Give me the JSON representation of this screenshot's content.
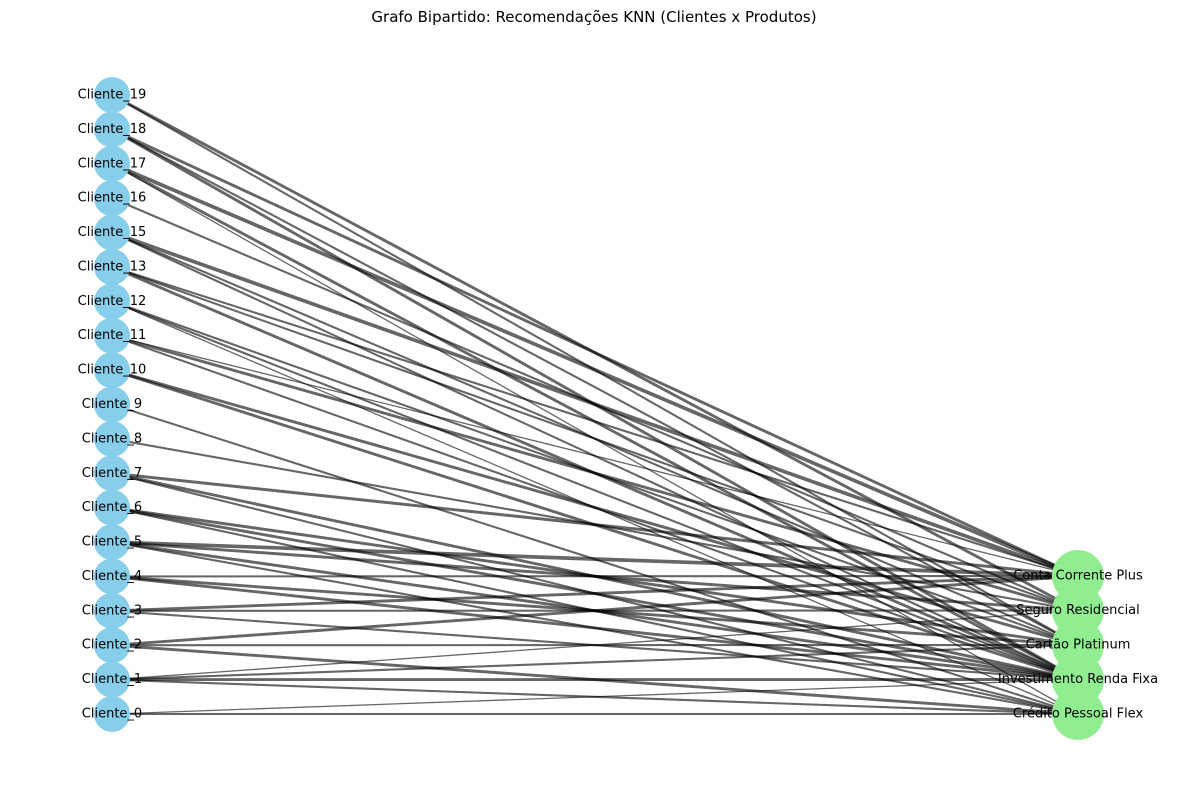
{
  "title": "Grafo Bipartido: Recomendações KNN (Clientes x Produtos)",
  "colors": {
    "client_node": "#87ceeb",
    "product_node": "#90ee90",
    "edge": "#000000"
  },
  "clients": [
    "Cliente_19",
    "Cliente_18",
    "Cliente_17",
    "Cliente_16",
    "Cliente_15",
    "Cliente_13",
    "Cliente_12",
    "Cliente_11",
    "Cliente_10",
    "Cliente_9",
    "Cliente_8",
    "Cliente_7",
    "Cliente_6",
    "Cliente_5",
    "Cliente_4",
    "Cliente_3",
    "Cliente_2",
    "Cliente_1",
    "Cliente_0"
  ],
  "products": [
    "Conta Corrente Plus",
    "Seguro Residencial",
    "Cartão Platinum",
    "Investimento Renda Fixa",
    "Crédito Pessoal Flex"
  ],
  "edges": [
    {
      "client": "Cliente_19",
      "product": "Seguro Residencial",
      "weight": 3
    },
    {
      "client": "Cliente_19",
      "product": "Cartão Platinum",
      "weight": 2
    },
    {
      "client": "Cliente_18",
      "product": "Investimento Renda Fixa",
      "weight": 3
    },
    {
      "client": "Cliente_18",
      "product": "Cartão Platinum",
      "weight": 2
    },
    {
      "client": "Cliente_18",
      "product": "Conta Corrente Plus",
      "weight": 3
    },
    {
      "client": "Cliente_17",
      "product": "Conta Corrente Plus",
      "weight": 4
    },
    {
      "client": "Cliente_17",
      "product": "Crédito Pessoal Flex",
      "weight": 1
    },
    {
      "client": "Cliente_17",
      "product": "Investimento Renda Fixa",
      "weight": 3
    },
    {
      "client": "Cliente_16",
      "product": "Seguro Residencial",
      "weight": 2
    },
    {
      "client": "Cliente_15",
      "product": "Conta Corrente Plus",
      "weight": 4
    },
    {
      "client": "Cliente_15",
      "product": "Cartão Platinum",
      "weight": 2
    },
    {
      "client": "Cliente_15",
      "product": "Investimento Renda Fixa",
      "weight": 2
    },
    {
      "client": "Cliente_13",
      "product": "Investimento Renda Fixa",
      "weight": 3
    },
    {
      "client": "Cliente_13",
      "product": "Conta Corrente Plus",
      "weight": 2
    },
    {
      "client": "Cliente_13",
      "product": "Seguro Residencial",
      "weight": 2
    },
    {
      "client": "Cliente_12",
      "product": "Cartão Platinum",
      "weight": 2
    },
    {
      "client": "Cliente_12",
      "product": "Investimento Renda Fixa",
      "weight": 2
    },
    {
      "client": "Cliente_12",
      "product": "Crédito Pessoal Flex",
      "weight": 1
    },
    {
      "client": "Cliente_11",
      "product": "Seguro Residencial",
      "weight": 3
    },
    {
      "client": "Cliente_11",
      "product": "Investimento Renda Fixa",
      "weight": 2
    },
    {
      "client": "Cliente_11",
      "product": "Conta Corrente Plus",
      "weight": 1
    },
    {
      "client": "Cliente_10",
      "product": "Cartão Platinum",
      "weight": 3
    },
    {
      "client": "Cliente_10",
      "product": "Investimento Renda Fixa",
      "weight": 3
    },
    {
      "client": "Cliente_9",
      "product": "Crédito Pessoal Flex",
      "weight": 2
    },
    {
      "client": "Cliente_8",
      "product": "Seguro Residencial",
      "weight": 2
    },
    {
      "client": "Cliente_7",
      "product": "Conta Corrente Plus",
      "weight": 3
    },
    {
      "client": "Cliente_7",
      "product": "Investimento Renda Fixa",
      "weight": 3
    },
    {
      "client": "Cliente_7",
      "product": "Crédito Pessoal Flex",
      "weight": 2
    },
    {
      "client": "Cliente_6",
      "product": "Cartão Platinum",
      "weight": 3
    },
    {
      "client": "Cliente_6",
      "product": "Investimento Renda Fixa",
      "weight": 3
    },
    {
      "client": "Cliente_6",
      "product": "Crédito Pessoal Flex",
      "weight": 2
    },
    {
      "client": "Cliente_5",
      "product": "Conta Corrente Plus",
      "weight": 4
    },
    {
      "client": "Cliente_5",
      "product": "Seguro Residencial",
      "weight": 3
    },
    {
      "client": "Cliente_5",
      "product": "Investimento Renda Fixa",
      "weight": 3
    },
    {
      "client": "Cliente_5",
      "product": "Crédito Pessoal Flex",
      "weight": 2
    },
    {
      "client": "Cliente_4",
      "product": "Conta Corrente Plus",
      "weight": 2
    },
    {
      "client": "Cliente_4",
      "product": "Cartão Platinum",
      "weight": 3
    },
    {
      "client": "Cliente_4",
      "product": "Investimento Renda Fixa",
      "weight": 3
    },
    {
      "client": "Cliente_3",
      "product": "Conta Corrente Plus",
      "weight": 3
    },
    {
      "client": "Cliente_3",
      "product": "Seguro Residencial",
      "weight": 2
    },
    {
      "client": "Cliente_3",
      "product": "Investimento Renda Fixa",
      "weight": 2
    },
    {
      "client": "Cliente_2",
      "product": "Conta Corrente Plus",
      "weight": 3
    },
    {
      "client": "Cliente_2",
      "product": "Cartão Platinum",
      "weight": 2
    },
    {
      "client": "Cliente_2",
      "product": "Crédito Pessoal Flex",
      "weight": 3
    },
    {
      "client": "Cliente_1",
      "product": "Investimento Renda Fixa",
      "weight": 3
    },
    {
      "client": "Cliente_1",
      "product": "Seguro Residencial",
      "weight": 1
    },
    {
      "client": "Cliente_1",
      "product": "Cartão Platinum",
      "weight": 2
    },
    {
      "client": "Cliente_1",
      "product": "Crédito Pessoal Flex",
      "weight": 2
    },
    {
      "client": "Cliente_0",
      "product": "Crédito Pessoal Flex",
      "weight": 2
    },
    {
      "client": "Cliente_0",
      "product": "Investimento Renda Fixa",
      "weight": 1
    }
  ]
}
